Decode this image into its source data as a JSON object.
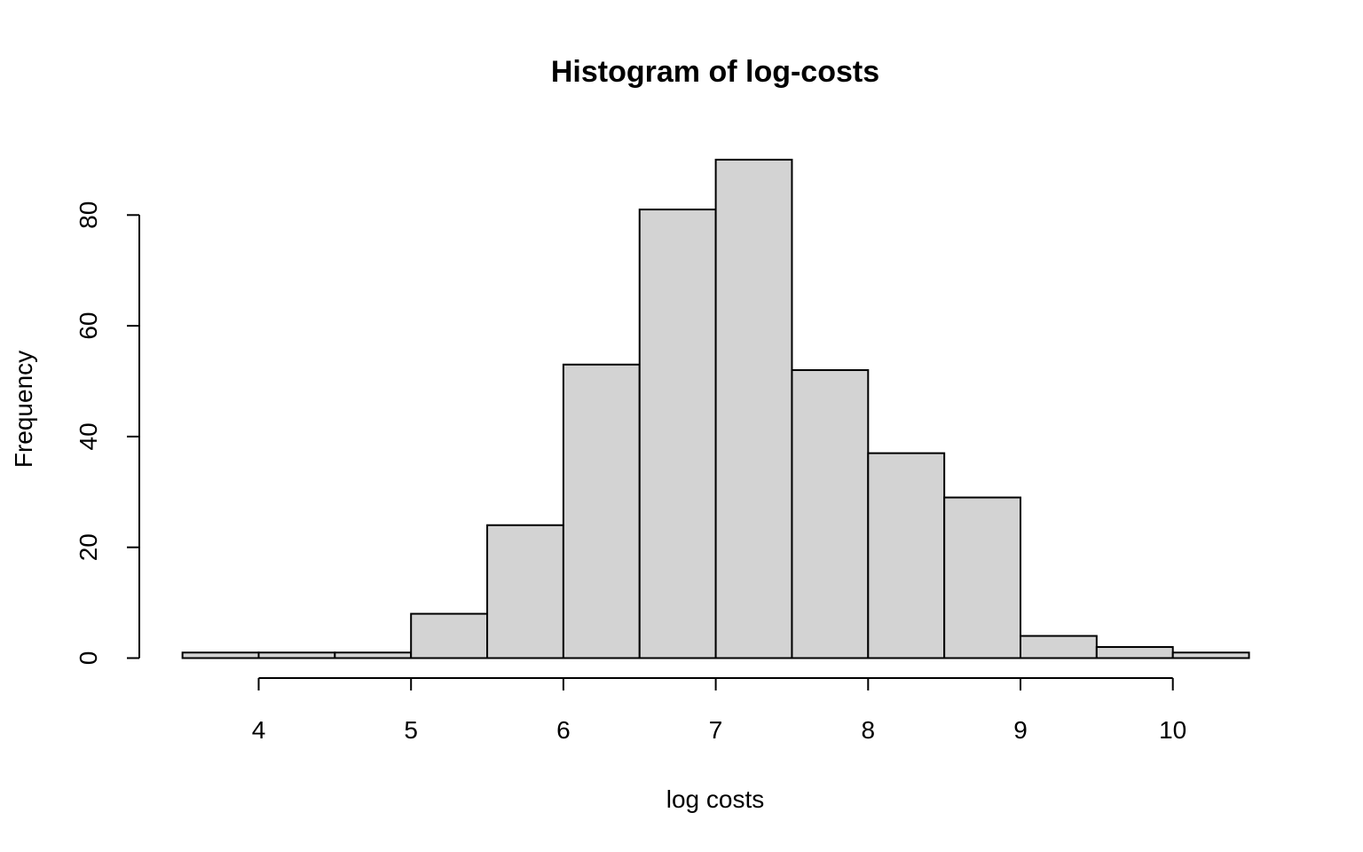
{
  "chart_data": {
    "type": "bar",
    "title": "Histogram of log-costs",
    "xlabel": "log costs",
    "ylabel": "Frequency",
    "bins": [
      {
        "start": 3.5,
        "end": 4.0,
        "count": 1
      },
      {
        "start": 4.0,
        "end": 4.5,
        "count": 1
      },
      {
        "start": 4.5,
        "end": 5.0,
        "count": 1
      },
      {
        "start": 5.0,
        "end": 5.5,
        "count": 8
      },
      {
        "start": 5.5,
        "end": 6.0,
        "count": 24
      },
      {
        "start": 6.0,
        "end": 6.5,
        "count": 53
      },
      {
        "start": 6.5,
        "end": 7.0,
        "count": 81
      },
      {
        "start": 7.0,
        "end": 7.5,
        "count": 90
      },
      {
        "start": 7.5,
        "end": 8.0,
        "count": 52
      },
      {
        "start": 8.0,
        "end": 8.5,
        "count": 37
      },
      {
        "start": 8.5,
        "end": 9.0,
        "count": 29
      },
      {
        "start": 9.0,
        "end": 9.5,
        "count": 4
      },
      {
        "start": 9.5,
        "end": 10.0,
        "count": 2
      },
      {
        "start": 10.0,
        "end": 10.5,
        "count": 1
      }
    ],
    "xlim": [
      3.5,
      10.5
    ],
    "ylim": [
      0,
      90
    ],
    "x_ticks": [
      4,
      5,
      6,
      7,
      8,
      9,
      10
    ],
    "y_ticks": [
      0,
      20,
      40,
      60,
      80
    ],
    "grid": false,
    "bar_fill": "#d3d3d3",
    "bar_stroke": "#000000"
  }
}
